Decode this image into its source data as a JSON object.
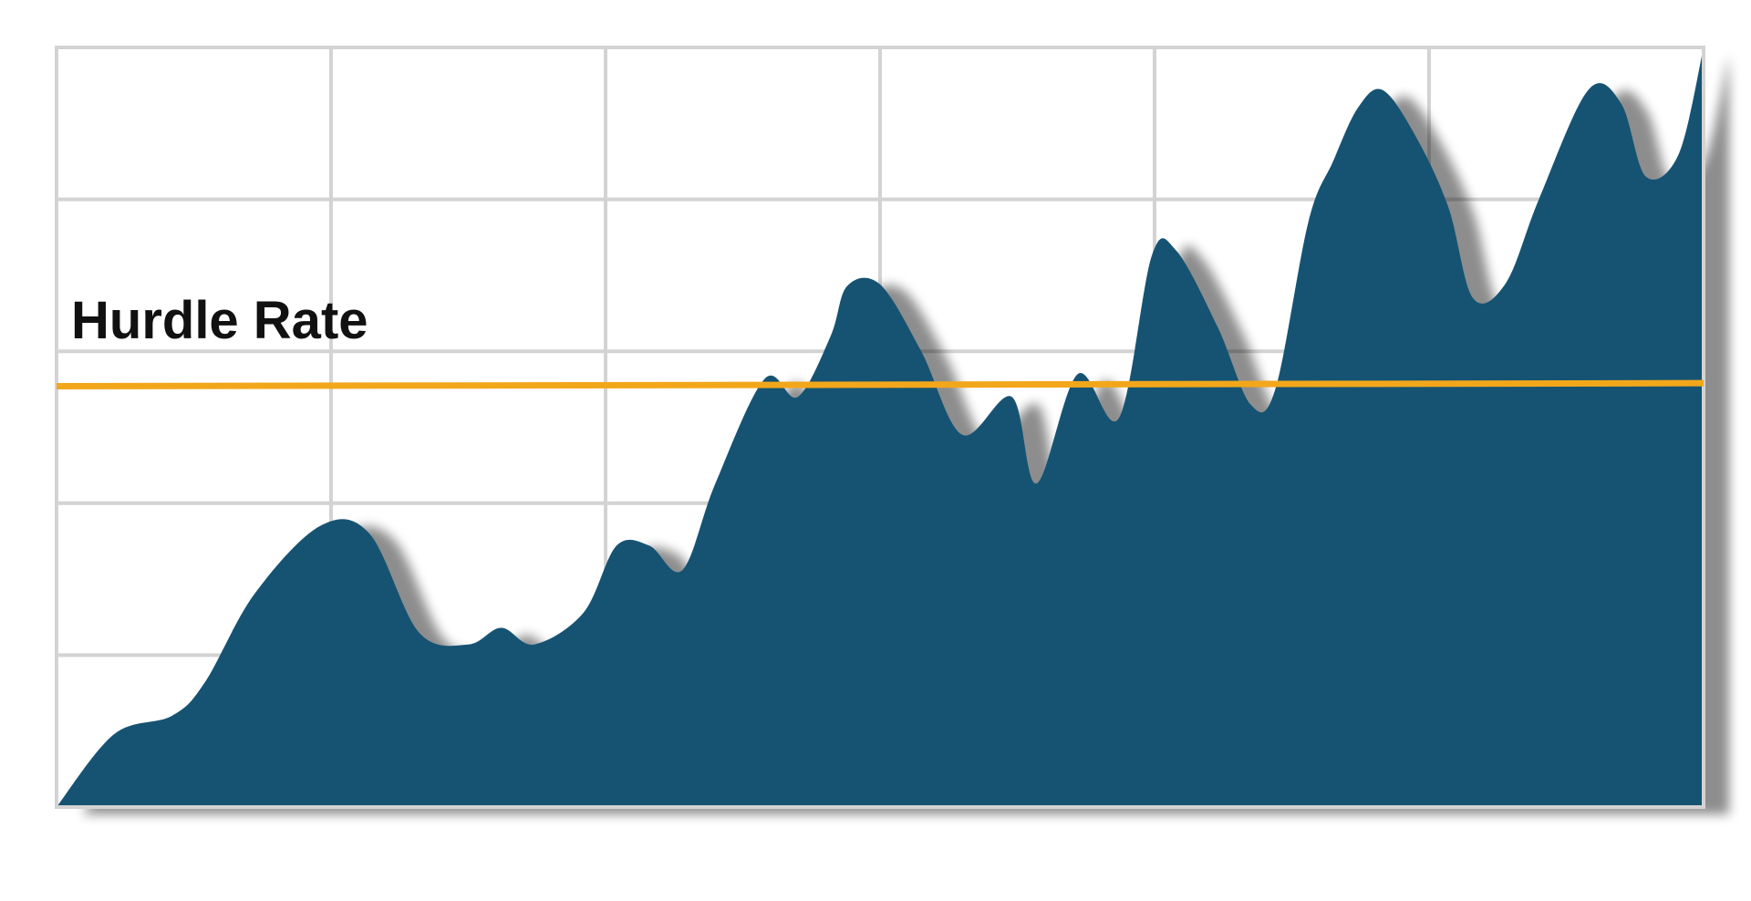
{
  "chart_data": {
    "type": "area",
    "title": "",
    "xlabel": "",
    "ylabel": "",
    "xlim": [
      0,
      100
    ],
    "ylim": [
      0,
      5
    ],
    "grid": true,
    "grid_columns": 6,
    "grid_rows": 5,
    "series": [
      {
        "x": [
          0,
          3.5,
          7,
          9,
          12,
          16,
          19,
          22,
          25,
          27,
          29,
          32,
          34,
          36,
          38,
          40,
          43,
          45,
          47,
          48,
          50,
          52.5,
          55,
          58,
          59.5,
          62,
          64.5,
          66.5,
          68,
          70.5,
          72.5,
          74,
          76,
          77.5,
          79,
          80.5,
          82.5,
          84.5,
          86,
          88,
          90,
          93,
          95,
          96.5,
          98.5,
          100
        ],
        "y": [
          0,
          0.48,
          0.6,
          0.82,
          1.4,
          1.85,
          1.8,
          1.15,
          1.07,
          1.18,
          1.07,
          1.28,
          1.72,
          1.72,
          1.56,
          2.13,
          2.82,
          2.7,
          3.1,
          3.43,
          3.44,
          3.0,
          2.45,
          2.7,
          2.13,
          2.85,
          2.56,
          3.63,
          3.66,
          3.16,
          2.65,
          2.75,
          3.85,
          4.25,
          4.6,
          4.72,
          4.42,
          3.95,
          3.35,
          3.45,
          4.0,
          4.72,
          4.63,
          4.15,
          4.3,
          5.0
        ],
        "color": "#165372"
      }
    ],
    "annotations": [
      {
        "label": "Hurdle Rate",
        "type": "hline",
        "y_start": 2.77,
        "y_end": 2.79,
        "color": "#F2A71B"
      }
    ]
  }
}
